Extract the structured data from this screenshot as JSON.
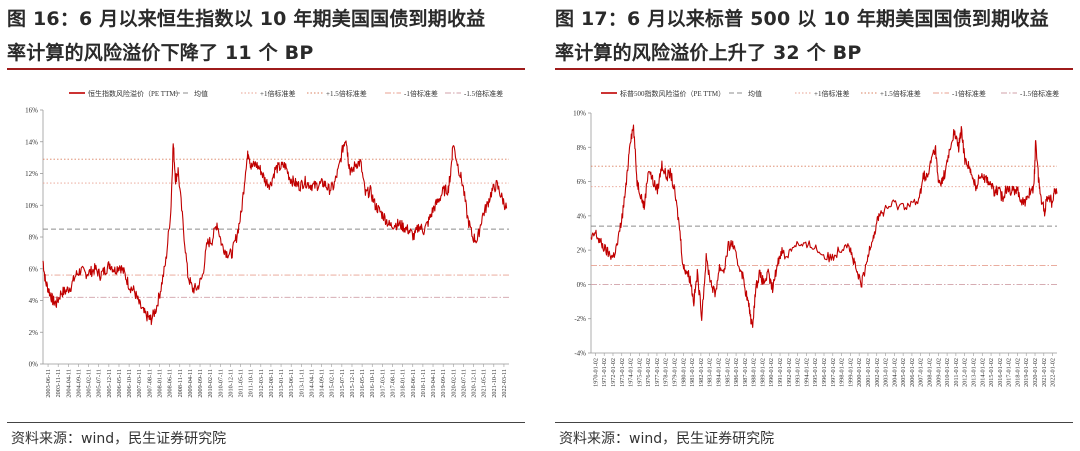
{
  "figures": [
    {
      "title_line1": "图 16：6 月以来恒生指数以 10 年期美国国债到期收益",
      "title_line2": "率计算的风险溢价下降了 11 个 BP",
      "source": "资料来源：wind，民生证券研究院"
    },
    {
      "title_line1": "图 17：6 月以来标普 500 以 10 年期美国国债到期收益",
      "title_line2": "率计算的风险溢价上升了 32 个 BP",
      "source": "资料来源：wind，民生证券研究院"
    }
  ],
  "chart_data": [
    {
      "type": "line",
      "xlabel": "",
      "ylabel": "",
      "ylim": [
        0,
        16
      ],
      "y_ticks": [
        "0%",
        "2%",
        "4%",
        "6%",
        "8%",
        "10%",
        "12%",
        "14%",
        "16%"
      ],
      "x_ticks": [
        "2003-06-11",
        "2003-11-11",
        "2004-04-11",
        "2004-09-11",
        "2005-02-11",
        "2005-07-11",
        "2005-12-11",
        "2006-05-11",
        "2006-10-11",
        "2007-03-11",
        "2007-08-11",
        "2008-01-11",
        "2008-06-11",
        "2008-11-11",
        "2009-04-11",
        "2009-09-11",
        "2010-02-11",
        "2010-07-11",
        "2010-12-11",
        "2011-05-11",
        "2011-10-11",
        "2012-03-11",
        "2012-08-11",
        "2013-01-11",
        "2013-06-11",
        "2013-11-11",
        "2014-04-11",
        "2014-09-11",
        "2015-02-11",
        "2015-07-11",
        "2015-12-11",
        "2016-05-11",
        "2016-10-11",
        "2017-03-11",
        "2017-08-11",
        "2018-01-11",
        "2018-06-11",
        "2018-11-11",
        "2019-04-11",
        "2019-09-11",
        "2020-02-11",
        "2020-07-11",
        "2020-12-11",
        "2021-05-11",
        "2021-10-11",
        "2022-03-11"
      ],
      "x_range": [
        2003.45,
        2022.6
      ],
      "legend": [
        {
          "label": "恒生指数风险溢价（PE TTM）",
          "color": "#c00000",
          "style": "solid"
        },
        {
          "label": "均值",
          "color": "#8c8c8c",
          "style": "dash"
        },
        {
          "label": "+1倍标准差",
          "color": "#e8a090",
          "style": "dot"
        },
        {
          "label": "+1.5倍标准差",
          "color": "#d98060",
          "style": "dot"
        },
        {
          "label": "-1倍标准差",
          "color": "#e8a090",
          "style": "dashdot"
        },
        {
          "label": "-1.5倍标准差",
          "color": "#d0a0a8",
          "style": "dashdot"
        }
      ],
      "reference_lines": {
        "mean": 8.5,
        "plus1": 11.4,
        "plus1_5": 12.9,
        "minus1": 5.6,
        "minus1_5": 4.2
      },
      "series": [
        {
          "name": "恒生指数风险溢价（PE TTM）",
          "color": "#c00000",
          "x": [
            2003.45,
            2003.55,
            2003.7,
            2003.85,
            2004.0,
            2004.2,
            2004.4,
            2004.6,
            2004.8,
            2005.0,
            2005.2,
            2005.4,
            2005.6,
            2005.8,
            2006.0,
            2006.2,
            2006.4,
            2006.6,
            2006.8,
            2007.0,
            2007.2,
            2007.4,
            2007.6,
            2007.8,
            2007.9,
            2008.1,
            2008.3,
            2008.5,
            2008.7,
            2008.8,
            2008.9,
            2009.0,
            2009.2,
            2009.4,
            2009.6,
            2009.8,
            2010.0,
            2010.2,
            2010.4,
            2010.6,
            2010.8,
            2011.0,
            2011.2,
            2011.4,
            2011.6,
            2011.8,
            2011.9,
            2012.0,
            2012.2,
            2012.4,
            2012.6,
            2012.8,
            2013.0,
            2013.2,
            2013.4,
            2013.6,
            2013.8,
            2014.0,
            2014.2,
            2014.4,
            2014.6,
            2014.8,
            2015.0,
            2015.2,
            2015.4,
            2015.6,
            2015.8,
            2015.9,
            2016.0,
            2016.1,
            2016.3,
            2016.5,
            2016.7,
            2016.9,
            2017.1,
            2017.3,
            2017.5,
            2017.7,
            2017.9,
            2018.1,
            2018.3,
            2018.5,
            2018.7,
            2018.9,
            2019.1,
            2019.3,
            2019.5,
            2019.7,
            2019.9,
            2020.1,
            2020.2,
            2020.3,
            2020.5,
            2020.7,
            2020.9,
            2021.1,
            2021.3,
            2021.5,
            2021.7,
            2021.9,
            2022.1,
            2022.3,
            2022.5
          ],
          "values": [
            6.5,
            5.2,
            4.6,
            4.0,
            3.8,
            4.5,
            4.6,
            4.9,
            5.6,
            5.9,
            5.7,
            5.8,
            6.0,
            5.6,
            5.9,
            6.3,
            5.9,
            6.2,
            5.7,
            4.9,
            4.6,
            3.8,
            3.2,
            2.9,
            2.8,
            3.5,
            4.8,
            6.5,
            9.6,
            13.9,
            11.6,
            12.2,
            8.9,
            5.6,
            4.7,
            4.8,
            5.5,
            7.6,
            7.8,
            8.9,
            7.5,
            7.0,
            6.9,
            8.0,
            9.5,
            12.6,
            13.4,
            12.4,
            12.6,
            12.2,
            11.5,
            11.3,
            12.3,
            12.4,
            12.5,
            11.7,
            11.4,
            11.2,
            11.5,
            11.3,
            11.2,
            11.3,
            11.4,
            11.0,
            11.2,
            12.3,
            13.8,
            14.3,
            12.8,
            12.0,
            12.6,
            12.7,
            10.7,
            10.9,
            10.0,
            9.6,
            9.2,
            8.7,
            8.8,
            8.8,
            8.6,
            8.4,
            8.0,
            8.7,
            8.4,
            9.0,
            9.8,
            10.3,
            10.9,
            11.0,
            12.0,
            13.9,
            12.5,
            11.3,
            9.2,
            8.0,
            7.8,
            9.3,
            10.0,
            10.9,
            11.3,
            10.5,
            9.8
          ]
        }
      ]
    },
    {
      "type": "line",
      "xlabel": "",
      "ylabel": "",
      "ylim": [
        -4,
        10
      ],
      "y_ticks": [
        "-4%",
        "-2%",
        "0%",
        "2%",
        "4%",
        "6%",
        "8%",
        "10%"
      ],
      "x_ticks": [
        "1970-01-02",
        "1971-01-02",
        "1972-01-02",
        "1973-01-02",
        "1974-01-02",
        "1975-01-02",
        "1976-01-02",
        "1977-01-02",
        "1978-01-02",
        "1979-01-02",
        "1980-01-02",
        "1981-01-02",
        "1982-01-02",
        "1983-01-02",
        "1984-01-02",
        "1985-01-02",
        "1986-01-02",
        "1987-01-02",
        "1988-01-02",
        "1989-01-02",
        "1990-01-02",
        "1991-01-02",
        "1992-01-02",
        "1993-01-02",
        "1994-01-02",
        "1995-01-02",
        "1996-01-02",
        "1997-01-02",
        "1998-01-02",
        "1999-01-02",
        "2000-01-02",
        "2001-01-02",
        "2002-01-02",
        "2003-01-02",
        "2004-01-02",
        "2005-01-02",
        "2006-01-02",
        "2007-01-02",
        "2008-01-02",
        "2009-01-02",
        "2010-01-02",
        "2011-01-02",
        "2012-01-02",
        "2013-01-02",
        "2014-01-02",
        "2015-01-02",
        "2016-01-02",
        "2017-01-02",
        "2018-01-02",
        "2019-01-02",
        "2020-01-02",
        "2021-01-02",
        "2022-01-02"
      ],
      "x_range": [
        1970.0,
        2022.6
      ],
      "legend": [
        {
          "label": "标普500指数风险溢价（PE TTM）",
          "color": "#c00000",
          "style": "solid"
        },
        {
          "label": "均值",
          "color": "#8c8c8c",
          "style": "dash"
        },
        {
          "label": "+1倍标准差",
          "color": "#e8a090",
          "style": "dot"
        },
        {
          "label": "+1.5倍标准差",
          "color": "#d98060",
          "style": "dot"
        },
        {
          "label": "-1倍标准差",
          "color": "#e8a090",
          "style": "dashdot"
        },
        {
          "label": "-1.5倍标准差",
          "color": "#d0a0a8",
          "style": "dashdot"
        }
      ],
      "reference_lines": {
        "mean": 3.4,
        "plus1": 5.7,
        "plus1_5": 6.9,
        "minus1": 1.1,
        "minus1_5": 0.0
      },
      "series": [
        {
          "name": "标普500指数风险溢价（PE TTM）",
          "color": "#c00000",
          "x": [
            1970.0,
            1970.5,
            1971.0,
            1971.5,
            1972.0,
            1972.5,
            1973.0,
            1973.5,
            1974.0,
            1974.4,
            1974.8,
            1975.2,
            1975.6,
            1976.0,
            1976.5,
            1977.0,
            1977.5,
            1978.0,
            1978.5,
            1979.0,
            1979.5,
            1980.0,
            1980.4,
            1980.8,
            1981.2,
            1981.6,
            1982.0,
            1982.5,
            1983.0,
            1983.5,
            1984.0,
            1984.5,
            1985.0,
            1985.5,
            1986.0,
            1986.5,
            1987.0,
            1987.5,
            1987.9,
            1988.2,
            1988.6,
            1989.0,
            1989.5,
            1990.0,
            1990.5,
            1991.0,
            1991.5,
            1992.0,
            1993.0,
            1994.0,
            1995.0,
            1996.0,
            1997.0,
            1998.0,
            1999.0,
            1999.5,
            2000.0,
            2000.5,
            2001.0,
            2001.5,
            2002.0,
            2002.5,
            2003.0,
            2004.0,
            2005.0,
            2006.0,
            2007.0,
            2007.5,
            2008.0,
            2008.5,
            2008.9,
            2009.2,
            2009.6,
            2010.0,
            2010.5,
            2011.0,
            2011.5,
            2011.8,
            2012.2,
            2012.6,
            2013.0,
            2013.5,
            2014.0,
            2014.5,
            2015.0,
            2015.5,
            2016.0,
            2016.5,
            2017.0,
            2017.5,
            2018.0,
            2018.5,
            2019.0,
            2019.5,
            2020.0,
            2020.2,
            2020.5,
            2020.8,
            2021.2,
            2021.6,
            2022.0,
            2022.3,
            2022.6
          ],
          "values": [
            2.6,
            3.0,
            2.5,
            2.1,
            1.8,
            1.6,
            2.4,
            3.9,
            5.9,
            8.4,
            9.2,
            6.0,
            5.3,
            4.5,
            6.8,
            6.0,
            5.5,
            7.0,
            6.3,
            6.5,
            5.2,
            3.3,
            1.0,
            0.8,
            0.3,
            -1.0,
            0.6,
            -1.8,
            1.5,
            0.2,
            -0.6,
            1.0,
            0.8,
            2.2,
            2.4,
            1.3,
            0.8,
            -0.5,
            -1.5,
            -2.5,
            -0.2,
            0.6,
            0.1,
            0.6,
            -0.3,
            1.1,
            2.0,
            1.6,
            2.4,
            2.2,
            2.3,
            1.8,
            1.5,
            2.0,
            2.5,
            1.6,
            0.7,
            0.0,
            0.9,
            2.3,
            3.0,
            4.1,
            4.2,
            4.7,
            4.6,
            4.7,
            4.8,
            6.4,
            6.2,
            7.5,
            7.9,
            5.9,
            6.0,
            6.6,
            7.8,
            8.9,
            8.0,
            9.0,
            7.3,
            7.0,
            6.2,
            5.7,
            6.5,
            6.2,
            6.0,
            5.4,
            5.5,
            5.0,
            5.8,
            5.4,
            5.6,
            5.0,
            4.7,
            5.4,
            5.7,
            8.5,
            6.2,
            5.0,
            4.3,
            5.3,
            4.8,
            5.5,
            5.3
          ]
        }
      ]
    }
  ]
}
